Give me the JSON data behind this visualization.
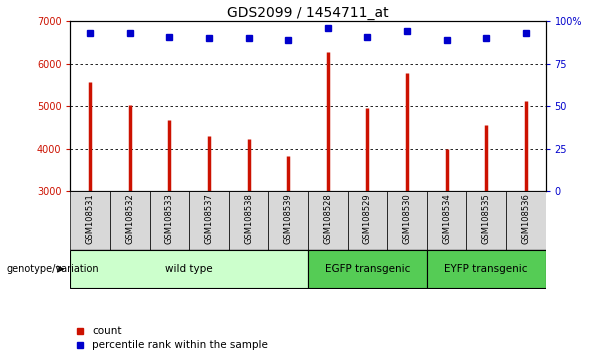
{
  "title": "GDS2099 / 1454711_at",
  "samples": [
    "GSM108531",
    "GSM108532",
    "GSM108533",
    "GSM108537",
    "GSM108538",
    "GSM108539",
    "GSM108528",
    "GSM108529",
    "GSM108530",
    "GSM108534",
    "GSM108535",
    "GSM108536"
  ],
  "counts": [
    5570,
    5020,
    4680,
    4290,
    4230,
    3830,
    6270,
    4960,
    5790,
    3990,
    4560,
    5120
  ],
  "percentiles": [
    93,
    93,
    91,
    90,
    90,
    89,
    96,
    91,
    94,
    89,
    90,
    93
  ],
  "ylim": [
    3000,
    7000
  ],
  "yticks": [
    3000,
    4000,
    5000,
    6000,
    7000
  ],
  "right_yticks": [
    0,
    25,
    50,
    75,
    100
  ],
  "bar_color": "#cc1100",
  "dot_color": "#0000cc",
  "groups": [
    {
      "label": "wild type",
      "start": 0,
      "end": 6,
      "color": "#ccffcc"
    },
    {
      "label": "EGFP transgenic",
      "start": 6,
      "end": 9,
      "color": "#44cc44"
    },
    {
      "label": "EYFP transgenic",
      "start": 9,
      "end": 12,
      "color": "#44cc44"
    }
  ],
  "group_label": "genotype/variation",
  "legend_count_label": "count",
  "legend_pct_label": "percentile rank within the sample",
  "title_fontsize": 10,
  "tick_fontsize": 7,
  "label_fontsize": 7.5
}
